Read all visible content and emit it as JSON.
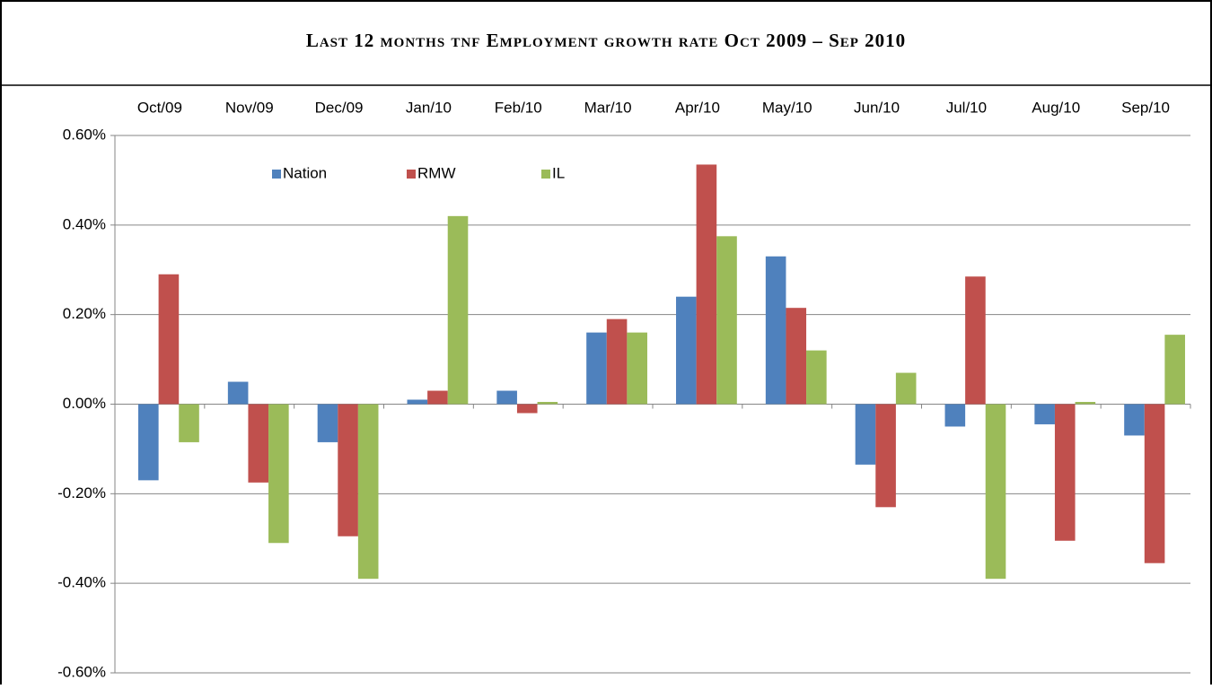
{
  "chart_data": {
    "type": "bar",
    "title": "Last 12 months tnf Employment growth rate Oct 2009 – Sep 2010",
    "categories": [
      "Oct/09",
      "Nov/09",
      "Dec/09",
      "Jan/10",
      "Feb/10",
      "Mar/10",
      "Apr/10",
      "May/10",
      "Jun/10",
      "Jul/10",
      "Aug/10",
      "Sep/10"
    ],
    "series": [
      {
        "name": "Nation",
        "color": "#4f81bd",
        "values": [
          -0.17,
          0.05,
          -0.085,
          0.01,
          0.03,
          0.16,
          0.24,
          0.33,
          -0.135,
          -0.05,
          -0.045,
          -0.07
        ]
      },
      {
        "name": "RMW",
        "color": "#c0504d",
        "values": [
          0.29,
          -0.175,
          -0.295,
          0.03,
          -0.02,
          0.19,
          0.535,
          0.215,
          -0.23,
          0.285,
          -0.305,
          -0.355
        ]
      },
      {
        "name": "IL",
        "color": "#9bbb59",
        "values": [
          -0.085,
          -0.31,
          -0.39,
          0.42,
          0.005,
          0.16,
          0.375,
          0.12,
          0.07,
          -0.39,
          0.005,
          0.155
        ]
      }
    ],
    "ylim": [
      -0.6,
      0.6
    ],
    "yticks": [
      {
        "value": -0.6,
        "label": "-0.60%"
      },
      {
        "value": -0.4,
        "label": "-0.40%"
      },
      {
        "value": -0.2,
        "label": "-0.20%"
      },
      {
        "value": 0,
        "label": "0.00%"
      },
      {
        "value": 0.2,
        "label": "0.20%"
      },
      {
        "value": 0.4,
        "label": "0.40%"
      },
      {
        "value": 0.6,
        "label": "0.60%"
      }
    ],
    "grid": true,
    "legend": "top"
  }
}
